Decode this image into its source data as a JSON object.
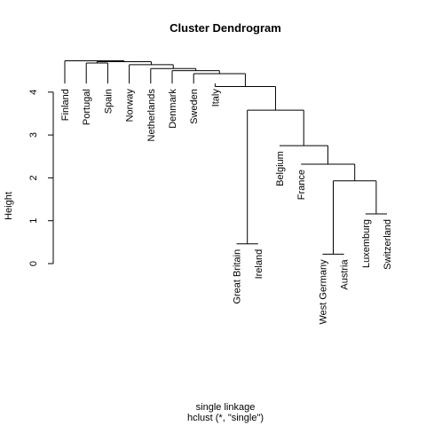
{
  "chart_data": {
    "type": "dendrogram",
    "title": "Cluster Dendrogram",
    "ylabel": "Height",
    "xlabel": "single linkage",
    "sublabel": "hclust (*, \"single\")",
    "ylim": [
      0,
      4.8
    ],
    "y_ticks": [
      0,
      1,
      2,
      3,
      4
    ],
    "leaves": [
      "Finland",
      "Portugal",
      "Spain",
      "Norway",
      "Netherlands",
      "Denmark",
      "Sweden",
      "Italy",
      "Great Britain",
      "Ireland",
      "Belgium",
      "France",
      "West Germany",
      "Austria",
      "Luxemburg",
      "Switzerland"
    ],
    "merges": [
      {
        "left": "Luxemburg",
        "right": "Switzerland",
        "height": 1.16
      },
      {
        "left": "West Germany",
        "right": "Austria",
        "height": 0.22
      },
      {
        "left": "West Germany+Austria",
        "right": "Luxemburg+Switzerland",
        "height": 1.93
      },
      {
        "left": "France",
        "right": "WG-A-L-S",
        "height": 2.32
      },
      {
        "left": "Belgium",
        "right": "F-WG-A-L-S",
        "height": 2.75
      },
      {
        "left": "Great Britain",
        "right": "Ireland",
        "height": 0.46
      },
      {
        "left": "GB+Ireland",
        "right": "Belgium-cluster",
        "height": 3.58
      },
      {
        "left": "Italy",
        "right": "GB-I-Belgium-cluster",
        "height": 4.13
      },
      {
        "left": "Sweden",
        "right": "Italy-cluster",
        "height": 4.43
      },
      {
        "left": "Denmark",
        "right": "Sweden-cluster",
        "height": 4.5
      },
      {
        "left": "Netherlands",
        "right": "Denmark-cluster",
        "height": 4.55
      },
      {
        "left": "Norway",
        "right": "Netherlands-cluster",
        "height": 4.64
      },
      {
        "left": "Portugal",
        "right": "Spain",
        "height": 4.68
      },
      {
        "left": "Portugal+Spain",
        "right": "Norway-cluster",
        "height": 4.71
      },
      {
        "left": "Finland",
        "right": "all-others",
        "height": 4.73
      }
    ],
    "leaf_heights": [
      4.2,
      4.2,
      4.2,
      4.2,
      4.2,
      4.2,
      4.2,
      4.2,
      0.46,
      0.46,
      2.75,
      2.32,
      0.22,
      0.22,
      1.16,
      1.16
    ],
    "grid": false,
    "legend": "none"
  }
}
